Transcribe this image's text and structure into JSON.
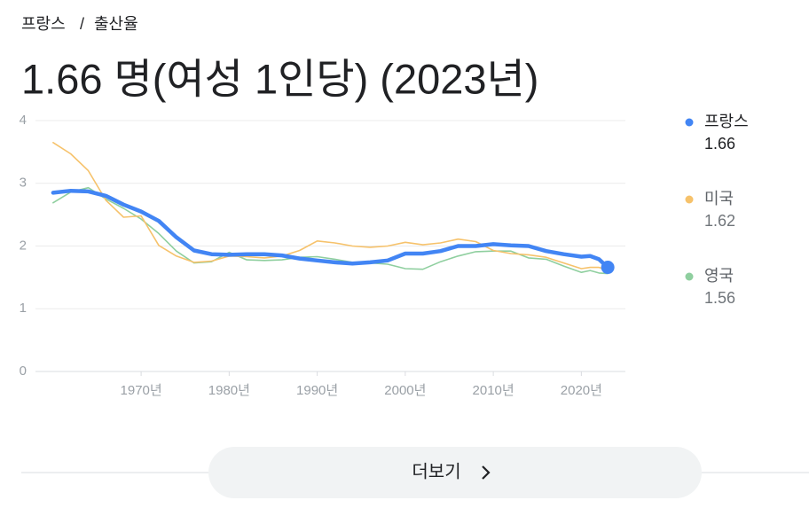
{
  "breadcrumb": [
    "프랑스",
    "/",
    "출산율"
  ],
  "chart_data": {
    "type": "line",
    "title": "1.66 명(여성 1인당) (2023년)",
    "x": [
      1960,
      1962,
      1964,
      1966,
      1968,
      1970,
      1972,
      1974,
      1976,
      1978,
      1980,
      1982,
      1984,
      1986,
      1988,
      1990,
      1992,
      1994,
      1996,
      1998,
      2000,
      2002,
      2004,
      2006,
      2008,
      2010,
      2012,
      2014,
      2016,
      2018,
      2020,
      2021,
      2022,
      2023
    ],
    "series": [
      {
        "name": "프랑스",
        "color": "#4285f4",
        "values": [
          2.85,
          2.88,
          2.87,
          2.8,
          2.66,
          2.55,
          2.4,
          2.14,
          1.93,
          1.87,
          1.86,
          1.87,
          1.87,
          1.85,
          1.8,
          1.77,
          1.74,
          1.72,
          1.74,
          1.77,
          1.88,
          1.88,
          1.92,
          2.0,
          2.0,
          2.03,
          2.01,
          2.0,
          1.92,
          1.87,
          1.83,
          1.84,
          1.79,
          1.66
        ]
      },
      {
        "name": "미국",
        "color": "#f6c26b",
        "values": [
          3.65,
          3.47,
          3.2,
          2.73,
          2.46,
          2.48,
          2.01,
          1.84,
          1.74,
          1.76,
          1.84,
          1.83,
          1.81,
          1.84,
          1.93,
          2.08,
          2.05,
          2.0,
          1.98,
          2.0,
          2.06,
          2.02,
          2.05,
          2.11,
          2.07,
          1.93,
          1.88,
          1.86,
          1.82,
          1.73,
          1.64,
          1.66,
          1.66,
          1.62
        ]
      },
      {
        "name": "영국",
        "color": "#8fcf9f",
        "values": [
          2.69,
          2.86,
          2.93,
          2.75,
          2.6,
          2.43,
          2.2,
          1.92,
          1.73,
          1.75,
          1.9,
          1.78,
          1.77,
          1.78,
          1.82,
          1.83,
          1.79,
          1.74,
          1.73,
          1.71,
          1.64,
          1.63,
          1.75,
          1.84,
          1.91,
          1.92,
          1.92,
          1.81,
          1.79,
          1.68,
          1.58,
          1.61,
          1.57,
          1.56
        ]
      }
    ],
    "xlim": [
      1958,
      2025
    ],
    "xticks": [
      {
        "value": 1970,
        "label": "1970년"
      },
      {
        "value": 1980,
        "label": "1980년"
      },
      {
        "value": 1990,
        "label": "1990년"
      },
      {
        "value": 2000,
        "label": "2000년"
      },
      {
        "value": 2010,
        "label": "2010년"
      },
      {
        "value": 2020,
        "label": "2020년"
      }
    ],
    "ylim": [
      0,
      4
    ],
    "yticks": [
      0,
      1,
      2,
      3,
      4
    ],
    "grid": true,
    "legend": "right"
  },
  "more_button": "더보기"
}
